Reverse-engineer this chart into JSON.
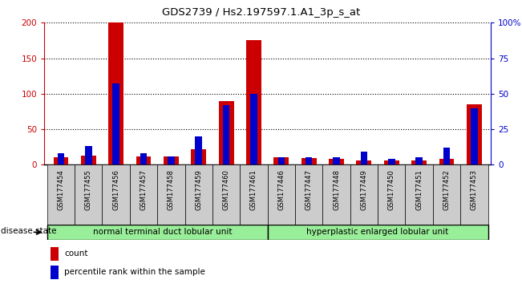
{
  "title": "GDS2739 / Hs2.197597.1.A1_3p_s_at",
  "samples": [
    "GSM177454",
    "GSM177455",
    "GSM177456",
    "GSM177457",
    "GSM177458",
    "GSM177459",
    "GSM177460",
    "GSM177461",
    "GSM177446",
    "GSM177447",
    "GSM177448",
    "GSM177449",
    "GSM177450",
    "GSM177451",
    "GSM177452",
    "GSM177453"
  ],
  "count_values": [
    10,
    13,
    200,
    12,
    12,
    22,
    90,
    175,
    10,
    9,
    8,
    6,
    6,
    6,
    8,
    85
  ],
  "percentile_values": [
    8,
    13,
    57,
    8,
    6,
    20,
    42,
    50,
    5,
    5,
    5,
    9,
    4,
    5,
    12,
    40
  ],
  "count_color": "#cc0000",
  "percentile_color": "#0000cc",
  "group1_label": "normal terminal duct lobular unit",
  "group2_label": "hyperplastic enlarged lobular unit",
  "group1_count": 8,
  "group2_count": 8,
  "disease_state_label": "disease state",
  "ylim_left": [
    0,
    200
  ],
  "ylim_right": [
    0,
    100
  ],
  "yticks_left": [
    0,
    50,
    100,
    150,
    200
  ],
  "yticks_right": [
    0,
    25,
    50,
    75,
    100
  ],
  "ytick_labels_right": [
    "0",
    "25",
    "50",
    "75",
    "100%"
  ],
  "background_color": "#ffffff",
  "tick_area_color": "#cccccc",
  "group_bg_color": "#99ee99",
  "red_bar_width": 0.55,
  "blue_bar_width": 0.25
}
